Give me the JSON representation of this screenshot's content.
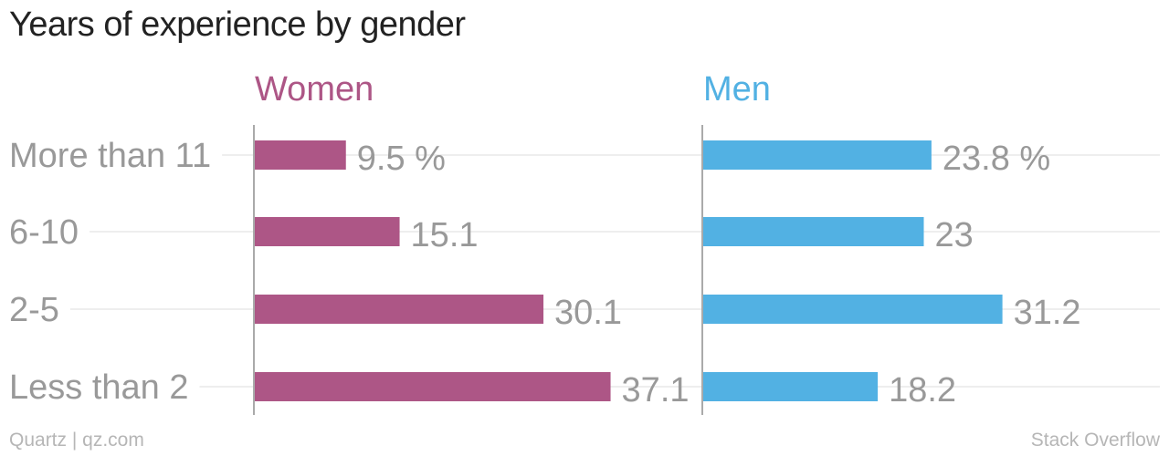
{
  "title": "Years of experience by gender",
  "chart_data": {
    "type": "bar",
    "orientation": "horizontal",
    "categories": [
      "More than 11",
      "6-10",
      "2-5",
      "Less than 2"
    ],
    "series": [
      {
        "name": "Women",
        "color": "#ad5686",
        "values": [
          9.5,
          15.1,
          30.1,
          37.1
        ],
        "labels": [
          "9.5 %",
          "15.1",
          "30.1",
          "37.1"
        ]
      },
      {
        "name": "Men",
        "color": "#52b1e3",
        "values": [
          23.8,
          23,
          31.2,
          18.2
        ],
        "labels": [
          "23.8 %",
          "23",
          "31.2",
          "18.2"
        ]
      }
    ],
    "xlim": [
      0,
      40
    ],
    "grid": true,
    "legend": "series titles above each panel"
  },
  "footer": {
    "source": "Quartz | qz.com",
    "credit": "Stack Overflow"
  },
  "colors": {
    "title": "#222222",
    "category_text": "#999999",
    "value_text": "#999999",
    "grid": "#eeeeee",
    "axis": "#aaaaaa",
    "footer": "#b6b6b6"
  }
}
